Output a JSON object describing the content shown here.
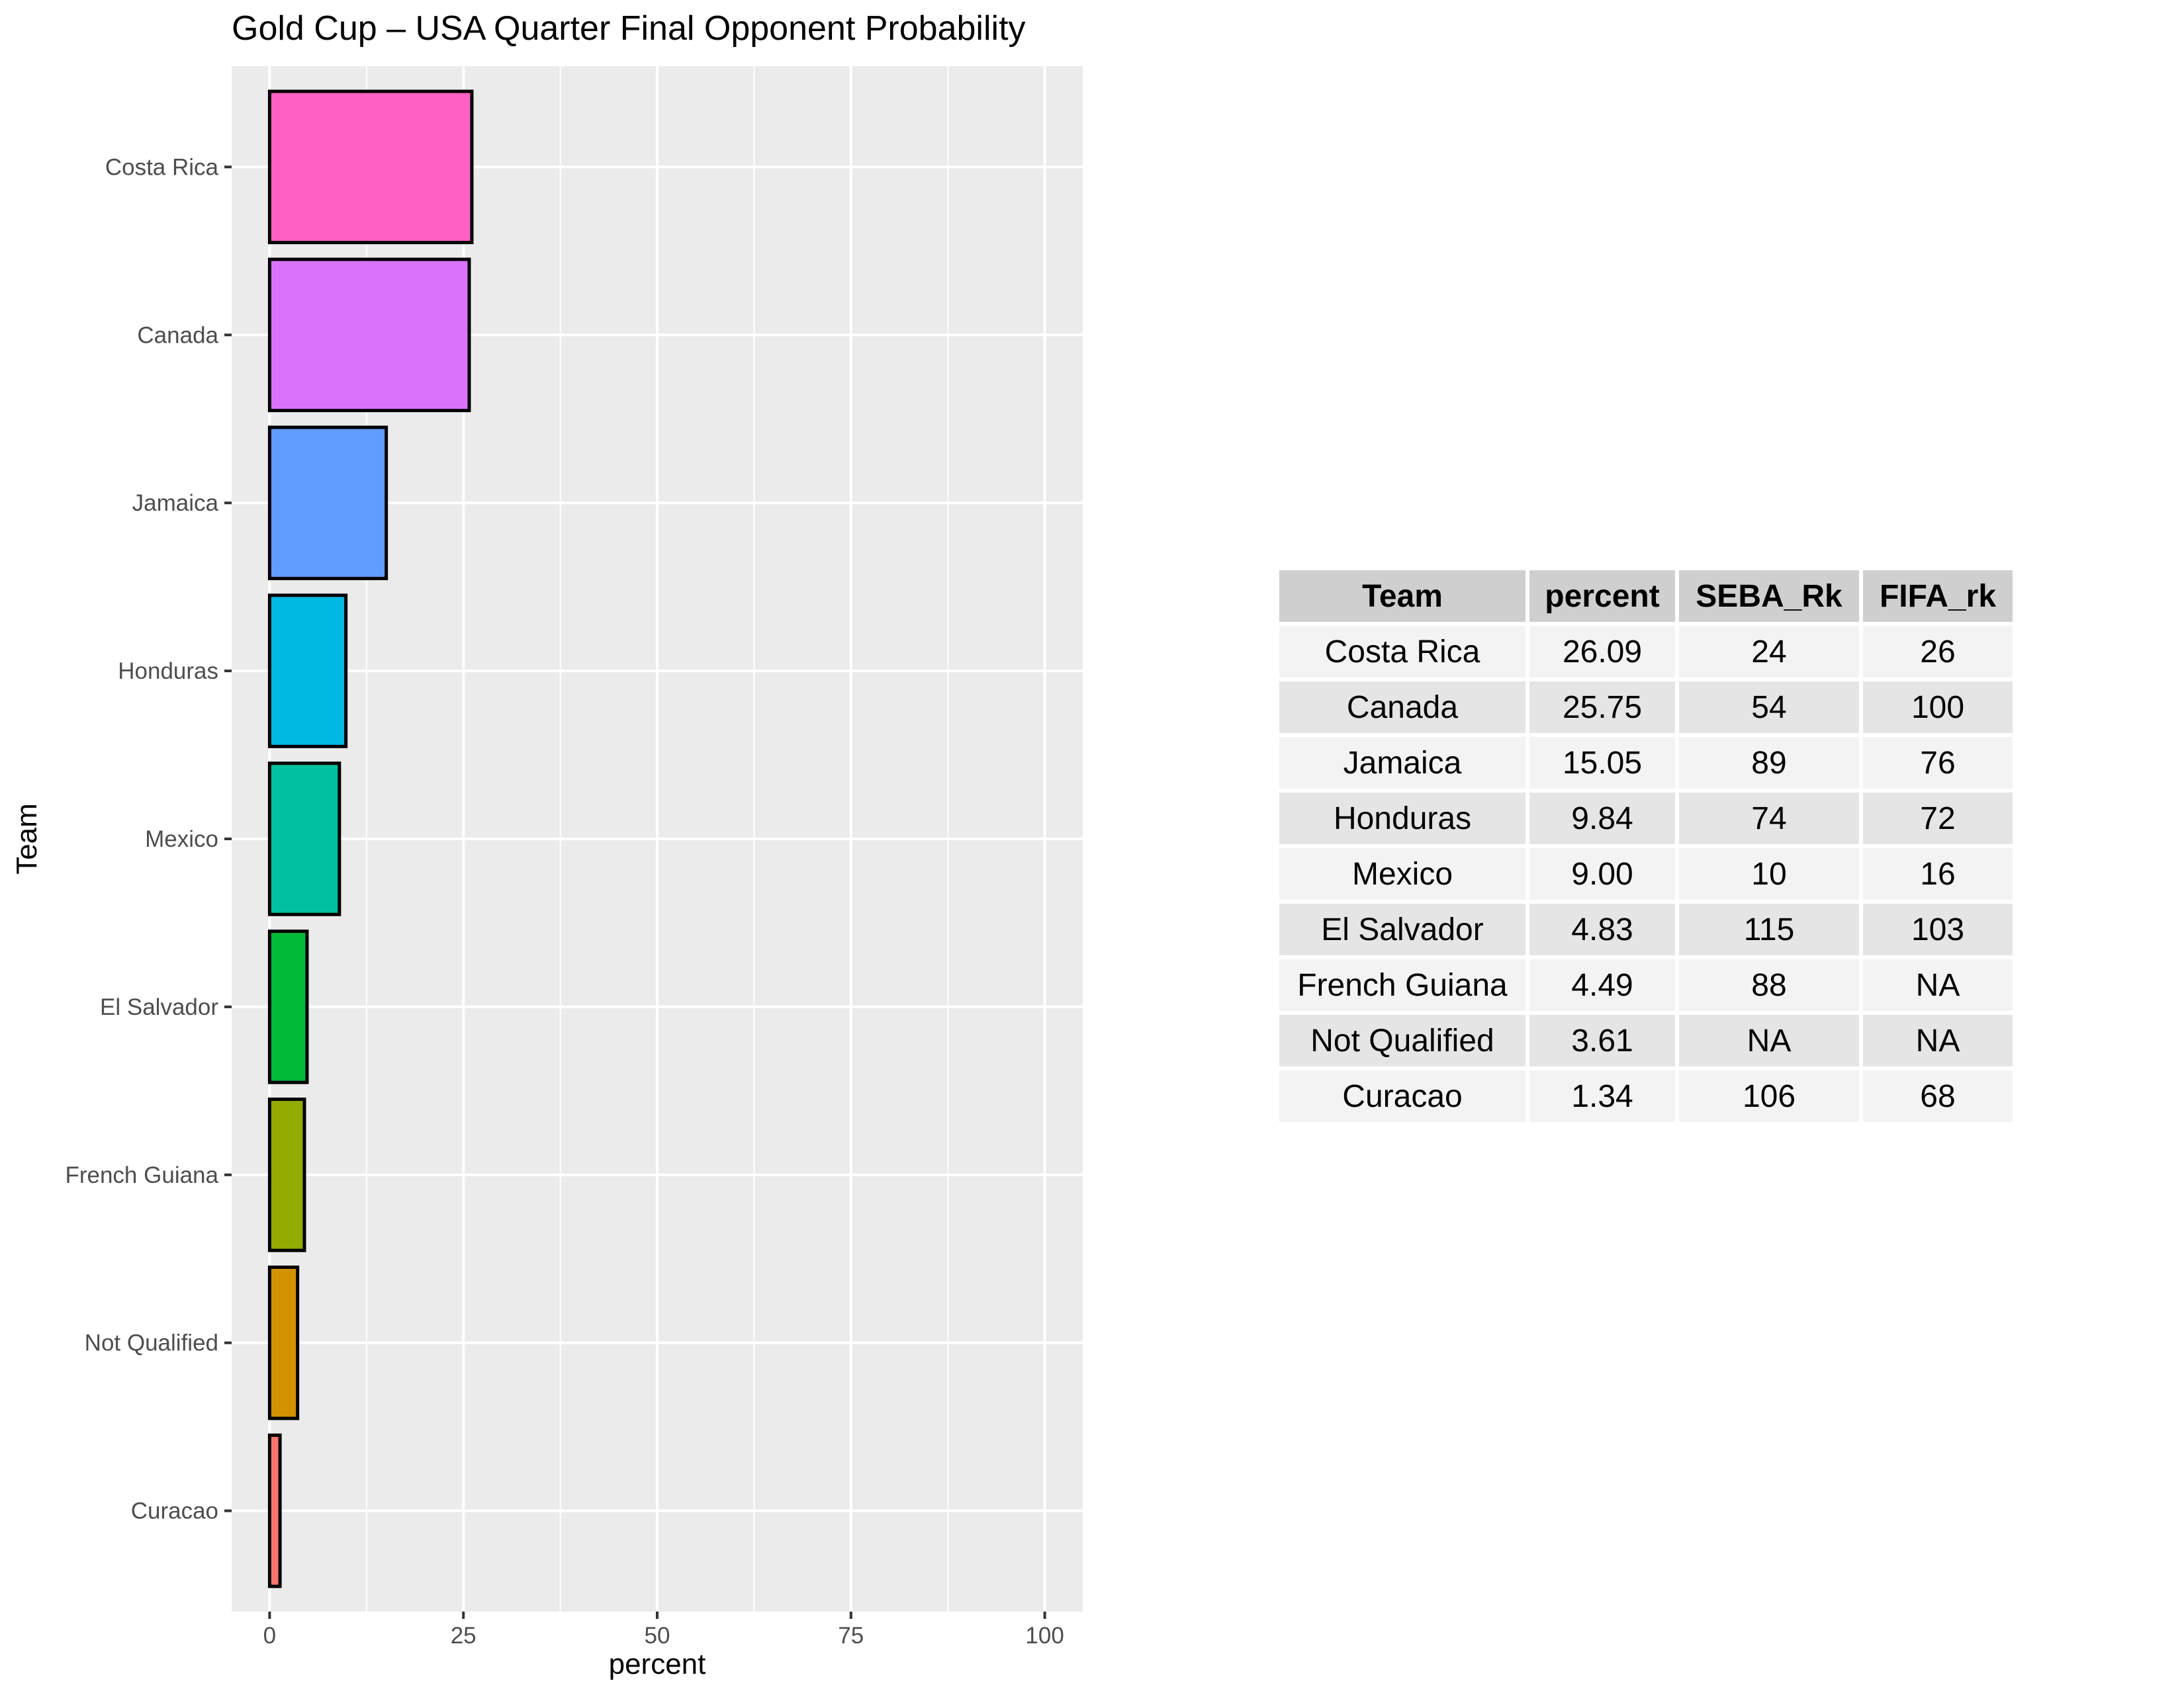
{
  "chart_data": {
    "type": "bar",
    "orientation": "horizontal",
    "title": "Gold Cup – USA Quarter Final Opponent Probability",
    "xlabel": "percent",
    "ylabel": "Team",
    "xlim": [
      0,
      100
    ],
    "xticks": [
      0,
      25,
      50,
      75,
      100
    ],
    "grid": true,
    "categories": [
      "Costa Rica",
      "Canada",
      "Jamaica",
      "Honduras",
      "Mexico",
      "El Salvador",
      "French Guiana",
      "Not Qualified",
      "Curacao"
    ],
    "values": [
      26.09,
      25.75,
      15.05,
      9.84,
      9.0,
      4.83,
      4.49,
      3.61,
      1.34
    ],
    "colors": [
      "#FF61C3",
      "#DB72FB",
      "#619CFF",
      "#00B9E3",
      "#00C19F",
      "#00BA38",
      "#93AA00",
      "#D39200",
      "#F8766D"
    ]
  },
  "table": {
    "headers": [
      "Team",
      "percent",
      "SEBA_Rk",
      "FIFA_rk"
    ],
    "rows": [
      [
        "Costa Rica",
        "26.09",
        "24",
        "26"
      ],
      [
        "Canada",
        "25.75",
        "54",
        "100"
      ],
      [
        "Jamaica",
        "15.05",
        "89",
        "76"
      ],
      [
        "Honduras",
        "9.84",
        "74",
        "72"
      ],
      [
        "Mexico",
        "9.00",
        "10",
        "16"
      ],
      [
        "El Salvador",
        "4.83",
        "115",
        "103"
      ],
      [
        "French Guiana",
        "4.49",
        "88",
        "NA"
      ],
      [
        "Not Qualified",
        "3.61",
        "NA",
        "NA"
      ],
      [
        "Curacao",
        "1.34",
        "106",
        "68"
      ]
    ]
  }
}
